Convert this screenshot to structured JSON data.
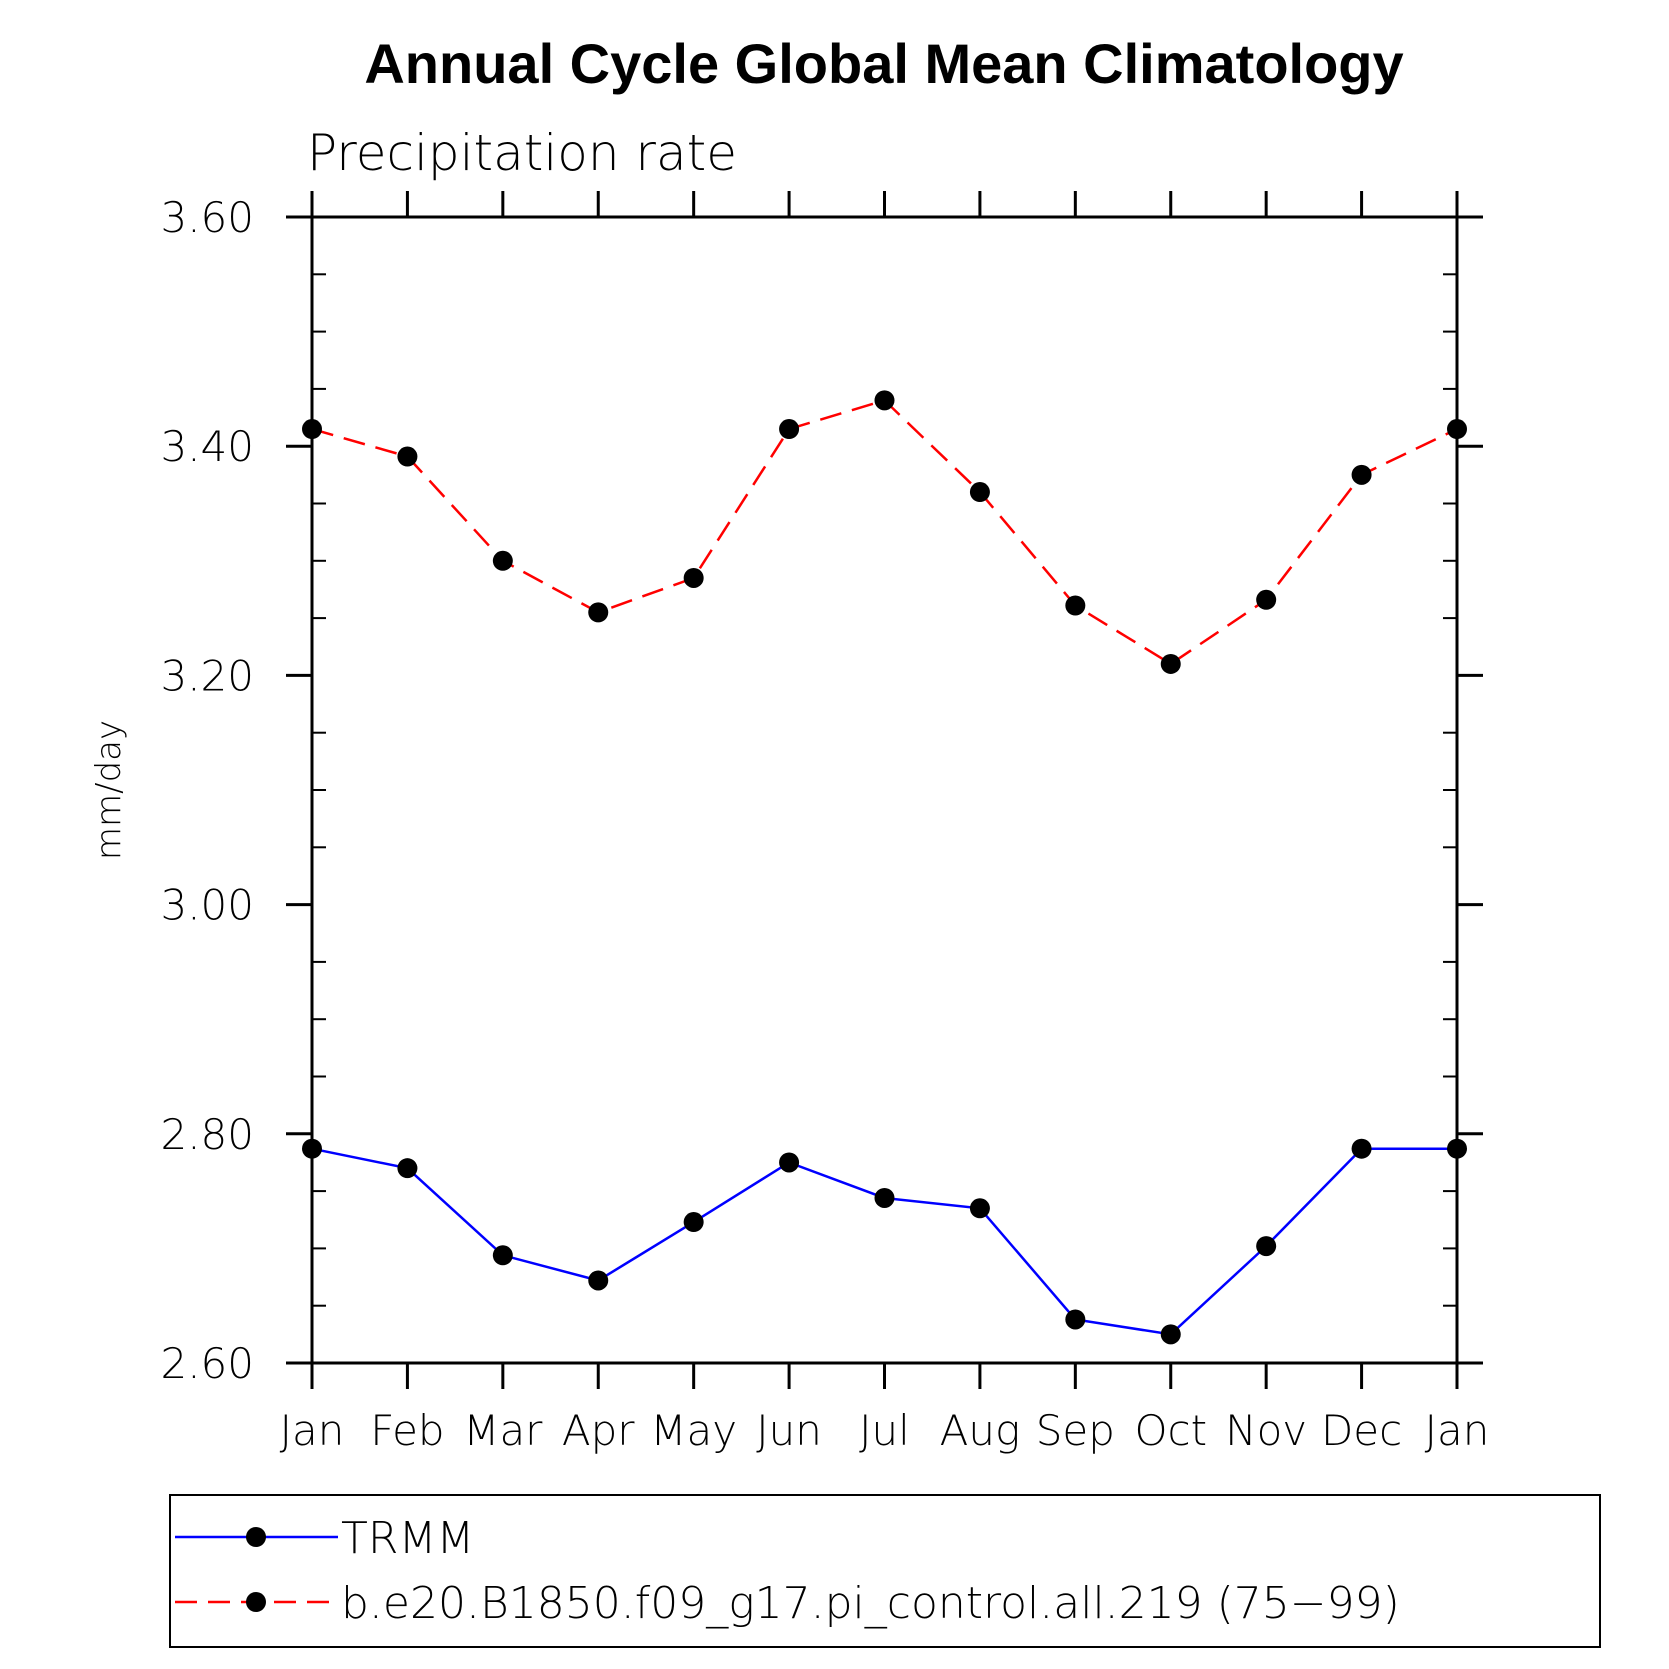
{
  "chart_data": {
    "type": "line",
    "title": "Annual Cycle Global Mean Climatology",
    "subtitle": "Precipitation rate",
    "ylabel": "mm/day",
    "xlabel": "",
    "categories": [
      "Jan",
      "Feb",
      "Mar",
      "Apr",
      "May",
      "Jun",
      "Jul",
      "Aug",
      "Sep",
      "Oct",
      "Nov",
      "Dec",
      "Jan"
    ],
    "ylim": [
      2.6,
      3.6
    ],
    "yticks": [
      2.6,
      2.8,
      3.0,
      3.2,
      3.4,
      3.6
    ],
    "ytick_labels": [
      "2.60",
      "2.80",
      "3.00",
      "3.20",
      "3.40",
      "3.60"
    ],
    "grid": false,
    "legend_position": "bottom",
    "series": [
      {
        "name": "TRMM",
        "color": "#0000ff",
        "dash": "solid",
        "values": [
          2.787,
          2.77,
          2.694,
          2.672,
          2.723,
          2.775,
          2.744,
          2.735,
          2.638,
          2.625,
          2.702,
          2.787,
          2.787
        ]
      },
      {
        "name": "b.e20.B1850.f09_g17.pi_control.all.219 (75−99)",
        "color": "#ff0000",
        "dash": "dashed",
        "values": [
          3.415,
          3.391,
          3.3,
          3.255,
          3.285,
          3.415,
          3.44,
          3.36,
          3.261,
          3.21,
          3.266,
          3.375,
          3.415
        ]
      }
    ]
  }
}
